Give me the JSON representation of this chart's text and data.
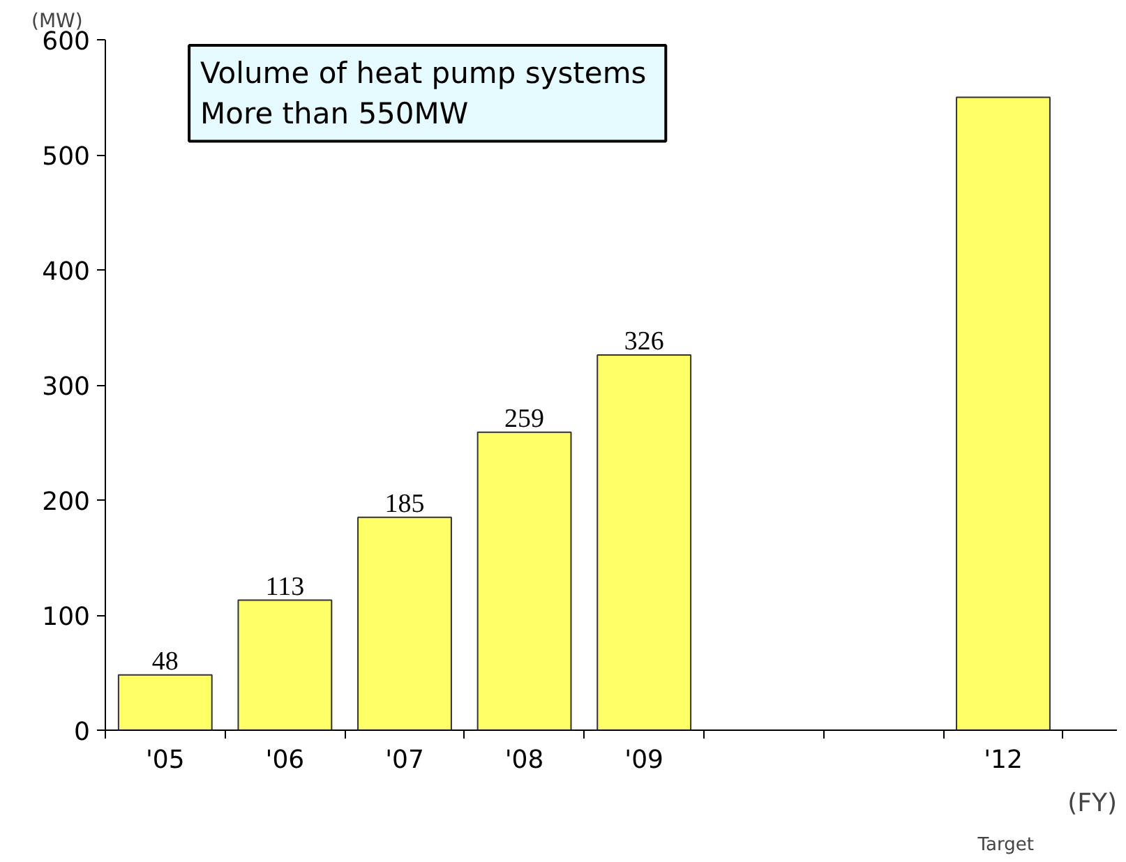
{
  "chart_data": {
    "type": "bar",
    "categories": [
      "'05",
      "'06",
      "'07",
      "'08",
      "'09",
      null,
      null,
      "'12"
    ],
    "values": [
      48,
      113,
      185,
      259,
      326,
      null,
      null,
      550
    ],
    "value_labels": [
      "48",
      "113",
      "185",
      "259",
      "326",
      null,
      null,
      null
    ],
    "color": "#ffff66",
    "ylabel": "(MW)",
    "xlabel": "(FY)",
    "ylim": [
      0,
      600
    ],
    "yticks": [
      0,
      100,
      200,
      300,
      400,
      500,
      600
    ],
    "grid": false,
    "annotations": [
      "Volume of heat pump systems\n                    More than 550MW",
      "Target"
    ]
  }
}
